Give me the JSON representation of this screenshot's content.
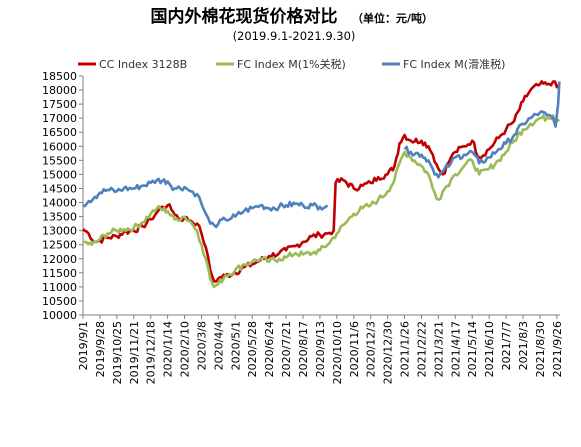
{
  "chart_data": {
    "type": "line",
    "title": "国内外棉花现货价格对比",
    "unit": "（单位：元/吨）",
    "subtitle": "(2019.9.1-2021.9.30)",
    "ylim": [
      10000,
      18500
    ],
    "ytick_step": 500,
    "grid": false,
    "legend_position": "top",
    "x_tick_labels": [
      "2019/9/1",
      "2019/9/28",
      "2019/10/25",
      "2019/11/21",
      "2019/12/18",
      "2020/1/14",
      "2020/2/10",
      "2020/3/8",
      "2020/4/4",
      "2020/5/1",
      "2020/5/28",
      "2020/6/24",
      "2020/7/21",
      "2020/8/17",
      "2020/9/13",
      "2020/10/10",
      "2020/11/6",
      "2020/12/3",
      "2020/12/30",
      "2021/1/26",
      "2021/2/22",
      "2021/3/21",
      "2021/4/17",
      "2021/5/14",
      "2021/6/10",
      "2021/7/7",
      "2021/8/3",
      "2021/8/30",
      "2021/9/26"
    ],
    "series": [
      {
        "name": "CC Index 3128B",
        "color": "#C00000",
        "values": [
          [
            "2019/9/1",
            13050
          ],
          [
            "2019/9/10",
            12900
          ],
          [
            "2019/9/20",
            12600
          ],
          [
            "2019/9/28",
            12650
          ],
          [
            "2019/10/10",
            12750
          ],
          [
            "2019/10/25",
            12800
          ],
          [
            "2019/11/5",
            12950
          ],
          [
            "2019/11/21",
            13000
          ],
          [
            "2019/12/5",
            13150
          ],
          [
            "2019/12/18",
            13400
          ],
          [
            "2019/12/28",
            13650
          ],
          [
            "2020/1/5",
            13850
          ],
          [
            "2020/1/14",
            13900
          ],
          [
            "2020/1/20",
            13750
          ],
          [
            "2020/2/3",
            13400
          ],
          [
            "2020/2/10",
            13450
          ],
          [
            "2020/2/20",
            13350
          ],
          [
            "2020/3/1",
            13250
          ],
          [
            "2020/3/8",
            12900
          ],
          [
            "2020/3/15",
            12400
          ],
          [
            "2020/3/22",
            11600
          ],
          [
            "2020/3/28",
            11200
          ],
          [
            "2020/4/4",
            11300
          ],
          [
            "2020/4/15",
            11400
          ],
          [
            "2020/5/1",
            11500
          ],
          [
            "2020/5/15",
            11700
          ],
          [
            "2020/5/28",
            11800
          ],
          [
            "2020/6/10",
            11950
          ],
          [
            "2020/6/24",
            12100
          ],
          [
            "2020/7/10",
            12200
          ],
          [
            "2020/7/21",
            12300
          ],
          [
            "2020/8/5",
            12450
          ],
          [
            "2020/8/17",
            12600
          ],
          [
            "2020/8/31",
            12800
          ],
          [
            "2020/9/13",
            12850
          ],
          [
            "2020/9/25",
            12900
          ],
          [
            "2020/10/5",
            13000
          ],
          [
            "2020/10/8",
            14700
          ],
          [
            "2020/10/20",
            14800
          ],
          [
            "2020/11/6",
            14500
          ],
          [
            "2020/11/20",
            14600
          ],
          [
            "2020/12/3",
            14700
          ],
          [
            "2020/12/15",
            14900
          ],
          [
            "2020/12/30",
            15000
          ],
          [
            "2021/1/10",
            15300
          ],
          [
            "2021/1/18",
            16100
          ],
          [
            "2021/1/26",
            16400
          ],
          [
            "2021/2/5",
            16200
          ],
          [
            "2021/2/22",
            16200
          ],
          [
            "2021/3/5",
            16000
          ],
          [
            "2021/3/12",
            15700
          ],
          [
            "2021/3/21",
            15200
          ],
          [
            "2021/3/28",
            15000
          ],
          [
            "2021/4/10",
            15600
          ],
          [
            "2021/4/17",
            15800
          ],
          [
            "2021/5/1",
            16000
          ],
          [
            "2021/5/14",
            16200
          ],
          [
            "2021/5/25",
            15600
          ],
          [
            "2021/6/10",
            15900
          ],
          [
            "2021/6/25",
            16300
          ],
          [
            "2021/7/7",
            16600
          ],
          [
            "2021/7/20",
            16900
          ],
          [
            "2021/8/3",
            17600
          ],
          [
            "2021/8/15",
            18000
          ],
          [
            "2021/8/30",
            18200
          ],
          [
            "2021/9/10",
            18200
          ],
          [
            "2021/9/20",
            18300
          ],
          [
            "2021/9/26",
            18100
          ],
          [
            "2021/9/30",
            18200
          ]
        ]
      },
      {
        "name": "FC Index M(1%关税)",
        "color": "#9BBB59",
        "values": [
          [
            "2019/9/1",
            12600
          ],
          [
            "2019/9/15",
            12500
          ],
          [
            "2019/9/28",
            12700
          ],
          [
            "2019/10/10",
            12900
          ],
          [
            "2019/10/25",
            13000
          ],
          [
            "2019/11/5",
            13050
          ],
          [
            "2019/11/21",
            13100
          ],
          [
            "2019/12/5",
            13300
          ],
          [
            "2019/12/18",
            13600
          ],
          [
            "2019/12/28",
            13800
          ],
          [
            "2020/1/14",
            13700
          ],
          [
            "2020/1/25",
            13400
          ],
          [
            "2020/2/10",
            13500
          ],
          [
            "2020/2/20",
            13300
          ],
          [
            "2020/3/1",
            13000
          ],
          [
            "2020/3/8",
            12500
          ],
          [
            "2020/3/15",
            12000
          ],
          [
            "2020/3/22",
            11300
          ],
          [
            "2020/3/28",
            11000
          ],
          [
            "2020/4/4",
            11100
          ],
          [
            "2020/4/15",
            11400
          ],
          [
            "2020/5/1",
            11600
          ],
          [
            "2020/5/15",
            11800
          ],
          [
            "2020/5/28",
            11900
          ],
          [
            "2020/6/10",
            12000
          ],
          [
            "2020/6/24",
            11900
          ],
          [
            "2020/7/10",
            12000
          ],
          [
            "2020/7/21",
            12050
          ],
          [
            "2020/8/5",
            12200
          ],
          [
            "2020/8/17",
            12150
          ],
          [
            "2020/9/1",
            12200
          ],
          [
            "2020/9/13",
            12300
          ],
          [
            "2020/9/25",
            12500
          ],
          [
            "2020/10/10",
            12900
          ],
          [
            "2020/10/25",
            13300
          ],
          [
            "2020/11/6",
            13600
          ],
          [
            "2020/11/20",
            13800
          ],
          [
            "2020/12/3",
            13900
          ],
          [
            "2020/12/15",
            14100
          ],
          [
            "2020/12/30",
            14400
          ],
          [
            "2021/1/10",
            14800
          ],
          [
            "2021/1/18",
            15400
          ],
          [
            "2021/1/26",
            15800
          ],
          [
            "2021/2/5",
            15600
          ],
          [
            "2021/2/22",
            15300
          ],
          [
            "2021/3/5",
            15000
          ],
          [
            "2021/3/12",
            14500
          ],
          [
            "2021/3/21",
            14100
          ],
          [
            "2021/3/28",
            14400
          ],
          [
            "2021/4/10",
            14800
          ],
          [
            "2021/4/17",
            15000
          ],
          [
            "2021/5/1",
            15300
          ],
          [
            "2021/5/14",
            15500
          ],
          [
            "2021/5/25",
            15000
          ],
          [
            "2021/6/10",
            15200
          ],
          [
            "2021/6/25",
            15500
          ],
          [
            "2021/7/7",
            15800
          ],
          [
            "2021/7/20",
            16200
          ],
          [
            "2021/8/3",
            16600
          ],
          [
            "2021/8/15",
            16800
          ],
          [
            "2021/8/30",
            17000
          ],
          [
            "2021/9/10",
            17000
          ],
          [
            "2021/9/20",
            17100
          ],
          [
            "2021/9/26",
            16900
          ],
          [
            "2021/9/30",
            16950
          ]
        ]
      },
      {
        "name": "FC Index M(滑准税)",
        "color": "#4F81BD",
        "values": [
          [
            "2019/9/1",
            13900
          ],
          [
            "2019/9/10",
            14050
          ],
          [
            "2019/9/20",
            14200
          ],
          [
            "2019/9/28",
            14350
          ],
          [
            "2019/10/10",
            14450
          ],
          [
            "2019/10/25",
            14400
          ],
          [
            "2019/11/5",
            14500
          ],
          [
            "2019/11/21",
            14500
          ],
          [
            "2019/12/5",
            14600
          ],
          [
            "2019/12/18",
            14700
          ],
          [
            "2019/12/28",
            14800
          ],
          [
            "2020/1/14",
            14750
          ],
          [
            "2020/1/25",
            14500
          ],
          [
            "2020/2/10",
            14550
          ],
          [
            "2020/2/20",
            14400
          ],
          [
            "2020/3/1",
            14300
          ],
          [
            "2020/3/8",
            13950
          ],
          [
            "2020/3/15",
            13600
          ],
          [
            "2020/3/22",
            13250
          ],
          [
            "2020/3/28",
            13200
          ],
          [
            "2020/4/4",
            13250
          ],
          [
            "2020/4/15",
            13400
          ],
          [
            "2020/5/1",
            13500
          ],
          [
            "2020/5/15",
            13700
          ],
          [
            "2020/5/28",
            13800
          ],
          [
            "2020/6/10",
            13900
          ],
          [
            "2020/6/24",
            13800
          ],
          [
            "2020/7/10",
            13850
          ],
          [
            "2020/7/21",
            13900
          ],
          [
            "2020/8/5",
            13950
          ],
          [
            "2020/8/17",
            13900
          ],
          [
            "2020/9/1",
            13900
          ],
          [
            "2020/9/13",
            13850
          ],
          [
            "2020/9/25",
            13900
          ],
          [
            "2021/1/26",
            15900
          ],
          [
            "2021/2/5",
            15800
          ],
          [
            "2021/2/22",
            15700
          ],
          [
            "2021/3/5",
            15500
          ],
          [
            "2021/3/12",
            15200
          ],
          [
            "2021/3/21",
            14900
          ],
          [
            "2021/3/28",
            15100
          ],
          [
            "2021/4/10",
            15400
          ],
          [
            "2021/4/17",
            15600
          ],
          [
            "2021/5/1",
            15700
          ],
          [
            "2021/5/14",
            15800
          ],
          [
            "2021/5/25",
            15400
          ],
          [
            "2021/6/10",
            15600
          ],
          [
            "2021/6/25",
            15900
          ],
          [
            "2021/7/7",
            16100
          ],
          [
            "2021/7/20",
            16400
          ],
          [
            "2021/8/3",
            16800
          ],
          [
            "2021/8/15",
            17000
          ],
          [
            "2021/8/30",
            17200
          ],
          [
            "2021/9/10",
            17100
          ],
          [
            "2021/9/20",
            17000
          ],
          [
            "2021/9/24",
            16700
          ],
          [
            "2021/9/28",
            17500
          ],
          [
            "2021/9/30",
            18300
          ]
        ]
      }
    ]
  }
}
